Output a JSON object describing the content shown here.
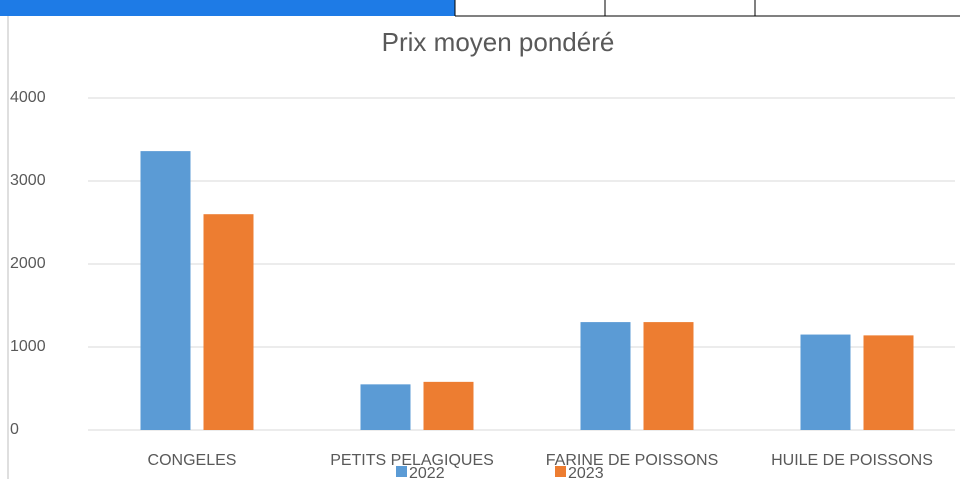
{
  "chart_data": {
    "type": "bar",
    "title": "Prix moyen pondéré",
    "categories": [
      "CONGELES",
      "PETITS PELAGIQUES",
      "FARINE DE POISSONS",
      "HUILE DE POISSONS"
    ],
    "series": [
      {
        "name": "2022",
        "color": "#5b9bd5",
        "values": [
          3360,
          550,
          1300,
          1150
        ]
      },
      {
        "name": "2023",
        "color": "#ed7d31",
        "values": [
          2600,
          580,
          1300,
          1140
        ]
      }
    ],
    "ylim": [
      0,
      4000
    ],
    "yticks": [
      0,
      1000,
      2000,
      3000,
      4000
    ],
    "grid": true,
    "legend": "bottom"
  }
}
